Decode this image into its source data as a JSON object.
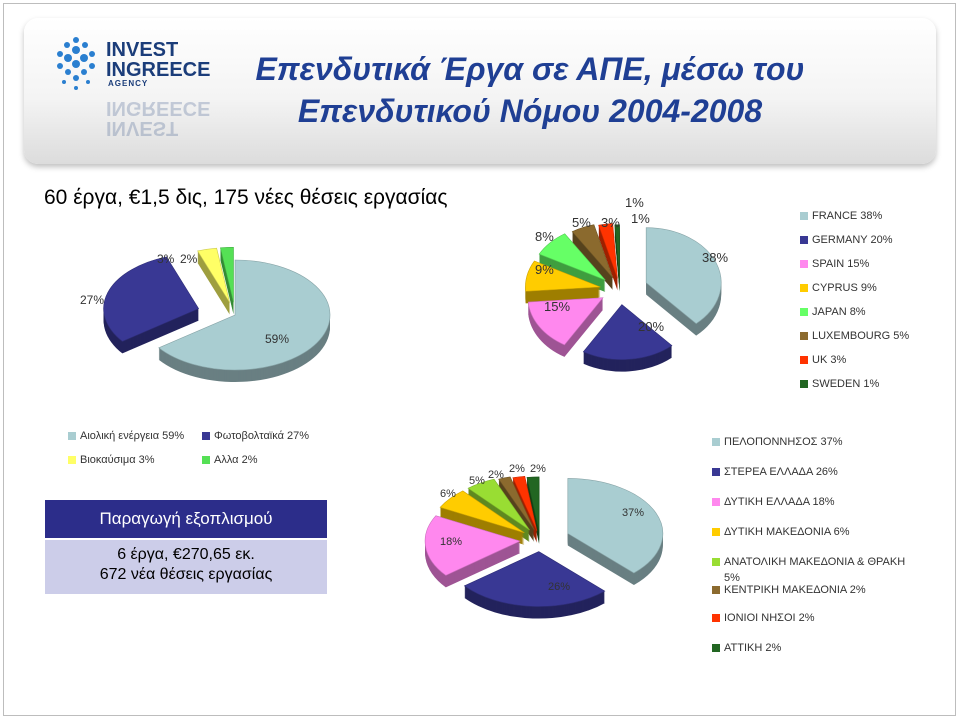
{
  "title_line1": "Επενδυτικά Έργα σε ΑΠΕ, μέσω του",
  "title_line2": "Επενδυτικού Νόμου 2004-2008",
  "logo": {
    "line1": "INVEST",
    "line2": "INGREECE",
    "line3": "AGENCY"
  },
  "subtitle": "60 έργα, €1,5 δις, 175 νέες θέσεις εργασίας",
  "info_box": {
    "heading": "Παραγωγή εξοπλισμού",
    "line1": "6 έργα, €270,65 εκ.",
    "line2": "672 νέα θέσεις εργασίας"
  },
  "chart_data": [
    {
      "type": "pie",
      "title": "",
      "labels": [
        "Αιολική ενέργεια",
        "Φωτοβολταϊκά",
        "Βιοκαύσιμα",
        "Αλλα"
      ],
      "values": [
        59,
        27,
        3,
        2
      ],
      "value_labels": [
        "59%",
        "27%",
        "3%",
        "2%"
      ],
      "legend_labels": [
        "Αιολική ενέργεια  59%",
        "Φωτοβολταϊκά  27%",
        "Βιοκαύσιμα  3%",
        "Αλλα  2%"
      ],
      "colors": [
        "#a9cdd1",
        "#393894",
        "#ffff66",
        "#55e055"
      ],
      "legend_position": "bottom"
    },
    {
      "type": "pie",
      "title": "",
      "labels": [
        "FRANCE",
        "GERMANY",
        "SPAIN",
        "CYPRUS",
        "JAPAN",
        "LUXEMBOURG",
        "UK",
        "SWEDEN"
      ],
      "values": [
        38,
        20,
        15,
        9,
        8,
        5,
        3,
        1
      ],
      "value_labels": [
        "38%",
        "20%",
        "15%",
        "9%",
        "8%",
        "5%",
        "3%",
        "1%"
      ],
      "legend_labels": [
        "FRANCE  38%",
        "GERMANY  20%",
        "SPAIN  15%",
        "CYPRUS  9%",
        "JAPAN  8%",
        "LUXEMBOURG  5%",
        "UK  3%",
        "SWEDEN  1%"
      ],
      "extra_labels": [
        "1%"
      ],
      "colors": [
        "#a9cdd1",
        "#393894",
        "#ff88ee",
        "#ffcc00",
        "#66ff66",
        "#8b6a2e",
        "#ff3300",
        "#226622"
      ],
      "legend_position": "right"
    },
    {
      "type": "pie",
      "title": "",
      "labels": [
        "ΠΕΛΟΠΟΝΝΗΣΟΣ",
        "ΣΤΕΡΕΑ ΕΛΛΑΔΑ",
        "ΔΥΤΙΚΗ ΕΛΛΑΔΑ",
        "ΔΥΤΙΚΗ ΜΑΚΕΔΟΝΙΑ",
        "ΑΝΑΤΟΛΙΚΗ ΜΑΚΕΔΟΝΙΑ & ΘΡΑΚΗ",
        "ΚΕΝΤΡΙΚΗ ΜΑΚΕΔΟΝΙΑ",
        "ΙΟΝΙΟΙ ΝΗΣΟΙ",
        "ΑΤΤΙΚΗ"
      ],
      "values": [
        37,
        26,
        18,
        6,
        5,
        2,
        2,
        2
      ],
      "value_labels": [
        "37%",
        "26%",
        "18%",
        "6%",
        "5%",
        "2%",
        "2%",
        "2%"
      ],
      "legend_labels": [
        "ΠΕΛΟΠΟΝΝΗΣΟΣ  37%",
        "ΣΤΕΡΕΑ ΕΛΛΑΔΑ  26%",
        "ΔΥΤΙΚΗ ΕΛΛΑΔΑ  18%",
        "ΔΥΤΙΚΗ ΜΑΚΕΔΟΝΙΑ  6%",
        "ΑΝΑΤΟΛΙΚΗ ΜΑΚΕΔΟΝΙΑ & ΘΡΑΚΗ",
        "ΚΕΝΤΡΙΚΗ ΜΑΚΕΔΟΝΙΑ  2%",
        "ΙΟΝΙΟΙ ΝΗΣΟΙ  2%",
        "ΑΤΤΙΚΗ  2%"
      ],
      "legend_extra": "5%",
      "colors": [
        "#a9cdd1",
        "#393894",
        "#ff88ee",
        "#ffcc00",
        "#99dd33",
        "#8b6a2e",
        "#ff3300",
        "#226622"
      ],
      "legend_position": "right"
    }
  ]
}
